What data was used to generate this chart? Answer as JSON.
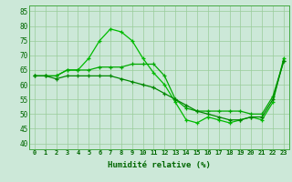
{
  "x": [
    0,
    1,
    2,
    3,
    4,
    5,
    6,
    7,
    8,
    9,
    10,
    11,
    12,
    13,
    14,
    15,
    16,
    17,
    18,
    19,
    20,
    21,
    22,
    23
  ],
  "line1": [
    63,
    63,
    63,
    65,
    65,
    69,
    75,
    79,
    78,
    75,
    69,
    64,
    60,
    54,
    48,
    47,
    49,
    48,
    47,
    48,
    49,
    48,
    54,
    69
  ],
  "line2": [
    63,
    63,
    63,
    65,
    65,
    65,
    66,
    66,
    66,
    67,
    67,
    67,
    63,
    55,
    52,
    51,
    51,
    51,
    51,
    51,
    50,
    50,
    56,
    68
  ],
  "line3": [
    63,
    63,
    62,
    63,
    63,
    63,
    63,
    63,
    62,
    61,
    60,
    59,
    57,
    55,
    53,
    51,
    50,
    49,
    48,
    48,
    49,
    49,
    55,
    68
  ],
  "line1_color": "#00bb00",
  "line2_color": "#00aa00",
  "line3_color": "#008800",
  "bg_color": "#cce8d8",
  "grid_color": "#99cc99",
  "xlabel": "Humidité relative (%)",
  "ylim": [
    38,
    87
  ],
  "xlim": [
    -0.5,
    23.5
  ],
  "yticks": [
    40,
    45,
    50,
    55,
    60,
    65,
    70,
    75,
    80,
    85
  ],
  "xticks": [
    0,
    1,
    2,
    3,
    4,
    5,
    6,
    7,
    8,
    9,
    10,
    11,
    12,
    13,
    14,
    15,
    16,
    17,
    18,
    19,
    20,
    21,
    22,
    23
  ]
}
